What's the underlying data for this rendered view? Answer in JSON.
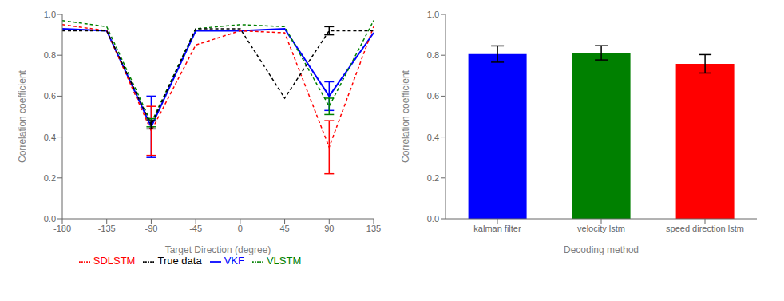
{
  "chart_data": [
    {
      "type": "line",
      "categories": [
        "-180",
        "-135",
        "-90",
        "-45",
        "0",
        "45",
        "90",
        "135"
      ],
      "xlabel": "Target Direction (degree)",
      "ylabel": "Correlation coefficient",
      "ylim": [
        0.0,
        1.0
      ],
      "yticks": [
        {
          "value": 0.0,
          "label": "0.0"
        },
        0.2,
        0.4,
        0.6,
        0.8,
        {
          "value": 1.0,
          "label": "1.0"
        }
      ],
      "grid": false,
      "legend": "bottom",
      "series": [
        {
          "name": "VKF",
          "color": "blue",
          "line_style": "solid",
          "values": [
            0.93,
            0.92,
            0.45,
            0.92,
            0.92,
            0.93,
            0.6,
            0.91
          ],
          "errors": [
            0.0,
            0.0,
            0.15,
            0.0,
            0.0,
            0.0,
            0.07,
            0.0
          ]
        },
        {
          "name": "SDLSTM",
          "color": "red",
          "line_style": "dashed",
          "values": [
            0.95,
            0.92,
            0.43,
            0.85,
            0.92,
            0.91,
            0.35,
            0.94
          ],
          "errors": [
            0.0,
            0.0,
            0.12,
            0.0,
            0.0,
            0.0,
            0.13,
            0.0
          ]
        },
        {
          "name": "VLSTM",
          "color": "green",
          "line_style": "dashed",
          "values": [
            0.97,
            0.94,
            0.47,
            0.93,
            0.95,
            0.94,
            0.55,
            0.97
          ],
          "errors": [
            0.0,
            0.0,
            0.02,
            0.0,
            0.0,
            0.0,
            0.04,
            0.0
          ]
        },
        {
          "name": "True data",
          "color": "black",
          "line_style": "dashed",
          "values": [
            0.92,
            0.92,
            0.46,
            0.93,
            0.93,
            0.59,
            0.92,
            0.92
          ],
          "errors": [
            0.0,
            0.0,
            0.02,
            0.0,
            0.0,
            0.0,
            0.02,
            0.0
          ]
        }
      ]
    },
    {
      "type": "bar",
      "categories": [
        "kalman filter",
        "velocity lstm",
        "speed direction lstm"
      ],
      "xlabel": "Decoding method",
      "ylabel": "Correlation coefficient",
      "ylim": [
        0.0,
        1.0
      ],
      "yticks": [
        {
          "value": 0.0,
          "label": "0.0"
        },
        0.2,
        0.4,
        0.6,
        0.8,
        {
          "value": 1.0,
          "label": "1.0"
        }
      ],
      "grid": false,
      "values": [
        0.806,
        0.812,
        0.758
      ],
      "errors": [
        0.04,
        0.035,
        0.045
      ],
      "colors": [
        "blue",
        "green",
        "red"
      ]
    }
  ]
}
